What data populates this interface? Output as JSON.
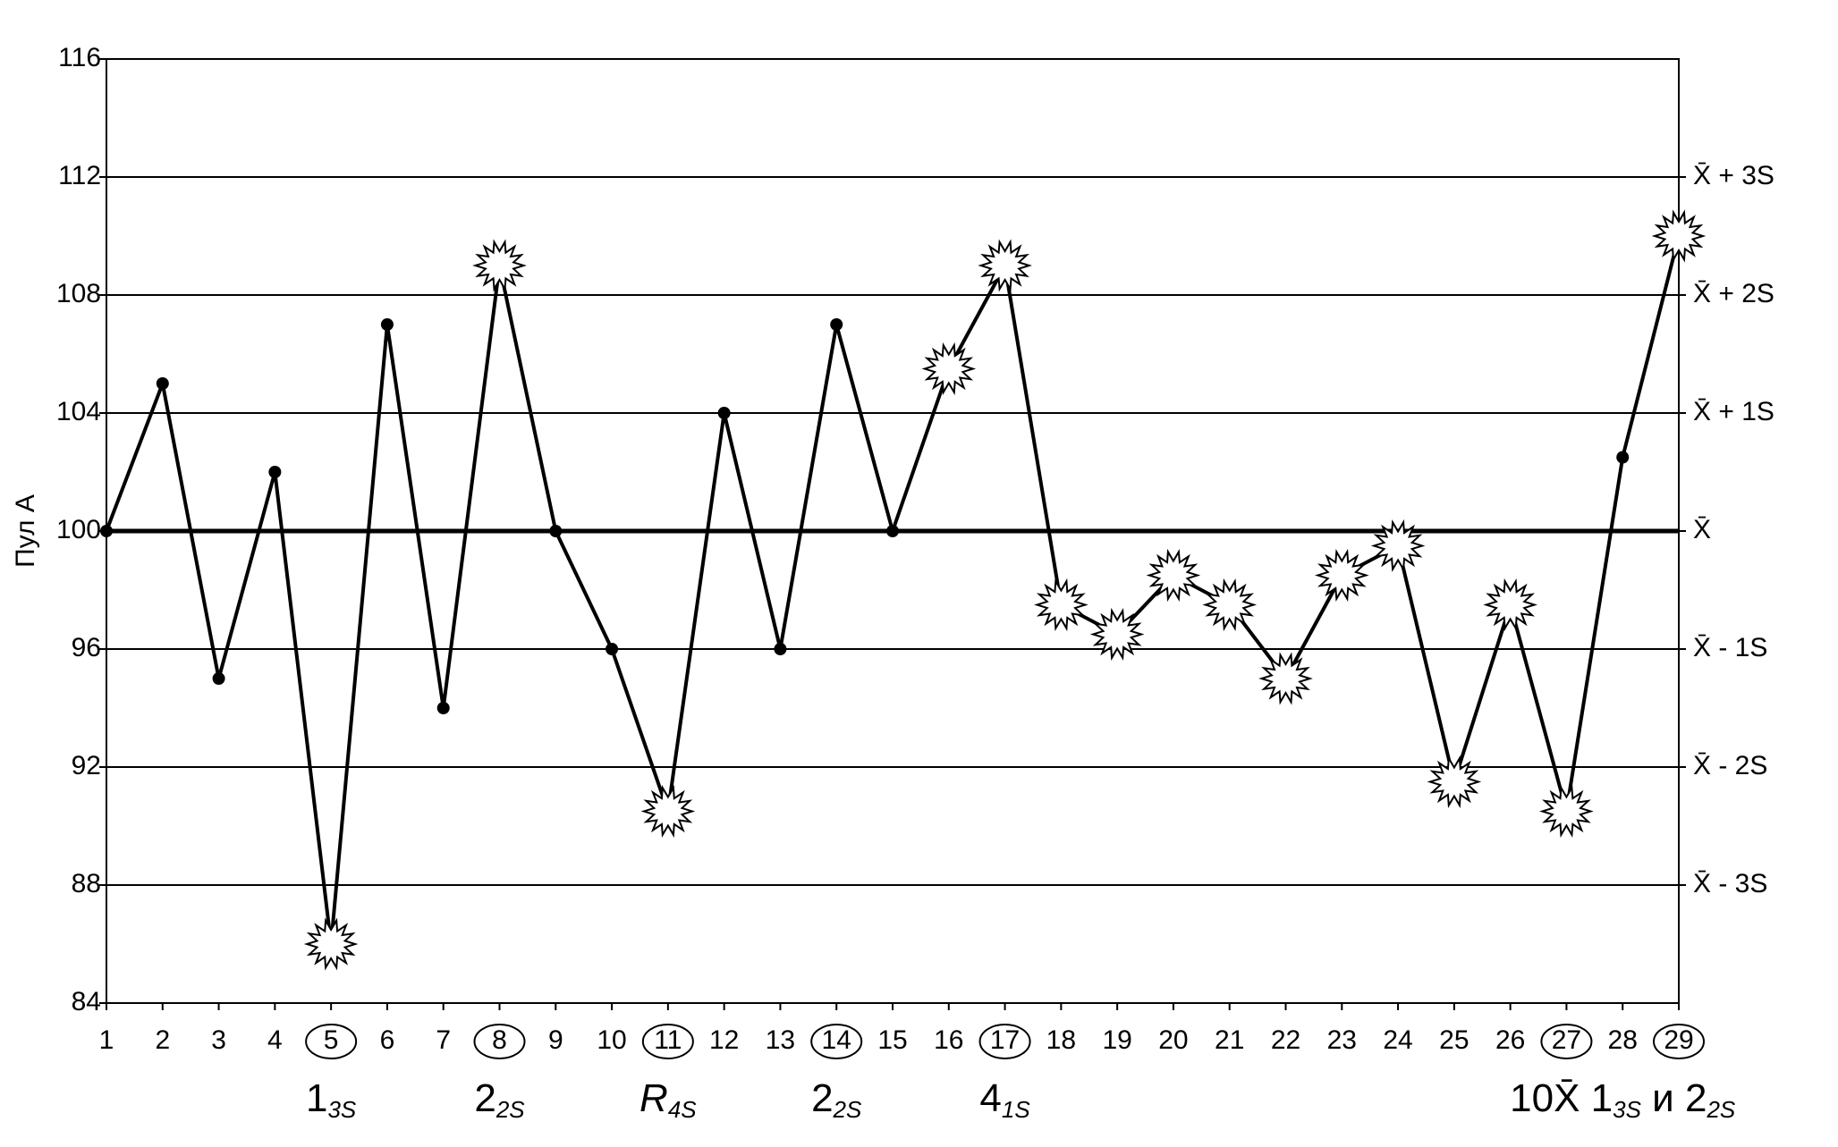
{
  "chart_data": {
    "type": "line",
    "y_label": "Пул A",
    "x": [
      1,
      2,
      3,
      4,
      5,
      6,
      7,
      8,
      9,
      10,
      11,
      12,
      13,
      14,
      15,
      16,
      17,
      18,
      19,
      20,
      21,
      22,
      23,
      24,
      25,
      26,
      27,
      28,
      29
    ],
    "xlim": [
      1,
      29
    ],
    "series": [
      {
        "color": "#000000",
        "values": [
          100,
          105,
          95,
          102,
          86,
          107,
          94,
          109,
          100,
          96,
          90.5,
          104,
          96,
          107,
          100,
          105.5,
          109,
          97.5,
          96.5,
          98.5,
          97.5,
          95,
          98.5,
          99.5,
          91.5,
          97.5,
          90.5,
          102.5,
          110
        ],
        "markers": [
          "dot",
          "dot",
          "dot",
          "dot",
          "star",
          "dot",
          "dot",
          "star",
          "dot",
          "dot",
          "star",
          "dot",
          "dot",
          "dot",
          "dot",
          "star",
          "star",
          "star",
          "star",
          "star",
          "star",
          "star",
          "star",
          "star",
          "star",
          "star",
          "star",
          "dot",
          "star"
        ]
      }
    ],
    "circled": [
      false,
      false,
      false,
      false,
      true,
      false,
      false,
      true,
      false,
      false,
      true,
      false,
      false,
      true,
      false,
      false,
      true,
      false,
      false,
      false,
      false,
      false,
      false,
      false,
      false,
      false,
      true,
      false,
      true
    ],
    "ylim": [
      84,
      116
    ],
    "yticks": [
      84,
      88,
      92,
      96,
      100,
      104,
      108,
      112,
      116
    ],
    "grid": true,
    "reference_lines": [
      {
        "value": 112,
        "label": "X̄ + 3S"
      },
      {
        "value": 108,
        "label": "X̄ + 2S"
      },
      {
        "value": 104,
        "label": "X̄ + 1S"
      },
      {
        "value": 100,
        "label": "X̄"
      },
      {
        "value": 96,
        "label": "X̄ - 1S"
      },
      {
        "value": 92,
        "label": "X̄ - 2S"
      },
      {
        "value": 88,
        "label": "X̄ - 3S"
      }
    ],
    "mean": 100,
    "annotations": [
      {
        "x": 5,
        "parts": [
          {
            "text": "1"
          },
          {
            "text": "3S",
            "sub": true
          }
        ]
      },
      {
        "x": 8,
        "parts": [
          {
            "text": "2"
          },
          {
            "text": "2S",
            "sub": true
          }
        ]
      },
      {
        "x": 11,
        "parts": [
          {
            "text": "R",
            "italic": true
          },
          {
            "text": "4S",
            "sub": true
          }
        ]
      },
      {
        "x": 14,
        "parts": [
          {
            "text": "2"
          },
          {
            "text": "2S",
            "sub": true
          }
        ]
      },
      {
        "x": 17,
        "parts": [
          {
            "text": "4"
          },
          {
            "text": "1S",
            "sub": true
          }
        ]
      },
      {
        "x": 28,
        "parts": [
          {
            "text": "10X̄ 1"
          },
          {
            "text": "3S",
            "sub": true
          },
          {
            "text": " и 2"
          },
          {
            "text": "2S",
            "sub": true
          }
        ]
      }
    ]
  }
}
